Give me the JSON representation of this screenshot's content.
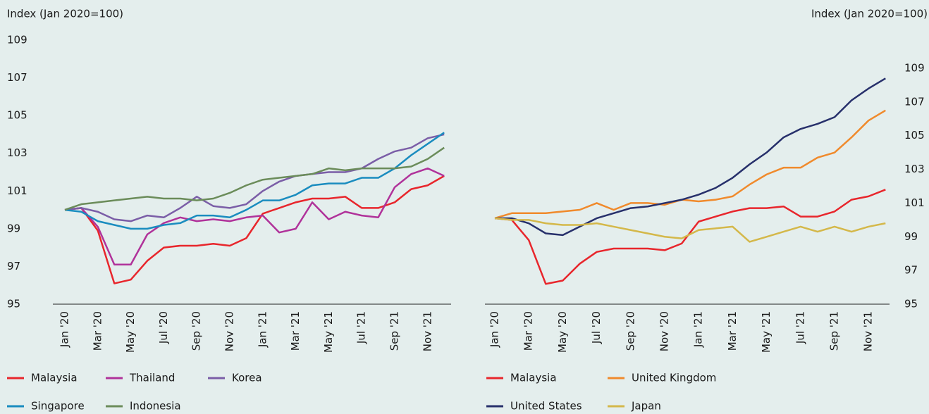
{
  "chart_data": [
    {
      "type": "line",
      "y_label": "Index (Jan 2020=100)",
      "categories": [
        "Jan '20",
        null,
        "Mar '20",
        null,
        "May '20",
        null,
        "Jul '20",
        null,
        "Sep '20",
        null,
        "Nov '20",
        null,
        "Jan '21",
        null,
        "Mar '21",
        null,
        "May '21",
        null,
        "Jul '21",
        null,
        "Sep '21",
        null,
        "Nov '21",
        null
      ],
      "ylim": [
        95,
        109
      ],
      "yticks": [
        95,
        97,
        99,
        101,
        103,
        105,
        107,
        109
      ],
      "series": [
        {
          "name": "Malaysia",
          "color": "#e8262c",
          "values": [
            100.0,
            100.1,
            98.9,
            96.1,
            96.3,
            97.3,
            98.0,
            98.1,
            98.1,
            98.2,
            98.1,
            98.5,
            99.8,
            100.1,
            100.4,
            100.6,
            100.6,
            100.7,
            100.1,
            100.1,
            100.4,
            101.1,
            101.3,
            101.8
          ]
        },
        {
          "name": "Thailand",
          "color": "#b0329a",
          "values": [
            100.0,
            100.1,
            99.1,
            97.1,
            97.1,
            98.7,
            99.3,
            99.6,
            99.4,
            99.5,
            99.4,
            99.6,
            99.7,
            98.8,
            99.0,
            100.4,
            99.5,
            99.9,
            99.7,
            99.6,
            101.2,
            101.9,
            102.2,
            101.8
          ]
        },
        {
          "name": "Korea",
          "color": "#7b5ea7",
          "values": [
            100.0,
            100.1,
            99.9,
            99.5,
            99.4,
            99.7,
            99.6,
            100.1,
            100.7,
            100.2,
            100.1,
            100.3,
            101.0,
            101.5,
            101.8,
            101.9,
            102.0,
            102.0,
            102.2,
            102.7,
            103.1,
            103.3,
            103.8,
            104.0
          ]
        },
        {
          "name": "Singapore",
          "color": "#1a8cbf",
          "values": [
            100.0,
            99.9,
            99.4,
            99.2,
            99.0,
            99.0,
            99.2,
            99.3,
            99.7,
            99.7,
            99.6,
            100.0,
            100.5,
            100.5,
            100.8,
            101.3,
            101.4,
            101.4,
            101.7,
            101.7,
            102.2,
            102.9,
            103.5,
            104.1
          ]
        },
        {
          "name": "Indonesia",
          "color": "#6b8c5a",
          "values": [
            100.0,
            100.3,
            100.4,
            100.5,
            100.6,
            100.7,
            100.6,
            100.6,
            100.5,
            100.6,
            100.9,
            101.3,
            101.6,
            101.7,
            101.8,
            101.9,
            102.2,
            102.1,
            102.2,
            102.2,
            102.2,
            102.3,
            102.7,
            103.3
          ]
        }
      ]
    },
    {
      "type": "line",
      "y_label": "Index (Jan 2020=100)",
      "categories": [
        "Jan '20",
        null,
        "Mar '20",
        null,
        "May '20",
        null,
        "Jul '20",
        null,
        "Sep '20",
        null,
        "Nov '20",
        null,
        "Jan '21",
        null,
        "Mar '21",
        null,
        "May '21",
        null,
        "Jul '21",
        null,
        "Sep '21",
        null,
        "Nov '21",
        null
      ],
      "ylim": [
        95,
        109
      ],
      "yticks": [
        95,
        97,
        99,
        101,
        103,
        105,
        107,
        109
      ],
      "series": [
        {
          "name": "Malaysia",
          "color": "#e8262c",
          "values": [
            100.1,
            100.0,
            98.8,
            96.2,
            96.4,
            97.4,
            98.1,
            98.3,
            98.3,
            98.3,
            98.2,
            98.6,
            99.9,
            100.2,
            100.5,
            100.7,
            100.7,
            100.8,
            100.2,
            100.2,
            100.5,
            101.2,
            101.4,
            101.8
          ]
        },
        {
          "name": "United Kingdom",
          "color": "#f08a2c",
          "values": [
            100.1,
            100.4,
            100.4,
            100.4,
            100.5,
            100.6,
            101.0,
            100.6,
            101.0,
            101.0,
            100.9,
            101.2,
            101.1,
            101.2,
            101.4,
            102.1,
            102.7,
            103.1,
            103.1,
            103.7,
            104.0,
            104.9,
            105.9,
            106.5
          ]
        },
        {
          "name": "United States",
          "color": "#27306b",
          "values": [
            100.1,
            100.1,
            99.8,
            99.2,
            99.1,
            99.6,
            100.1,
            100.4,
            100.7,
            100.8,
            101.0,
            101.2,
            101.5,
            101.9,
            102.5,
            103.3,
            104.0,
            104.9,
            105.4,
            105.7,
            106.1,
            107.1,
            107.8,
            108.4
          ]
        },
        {
          "name": "Japan",
          "color": "#d4b84a",
          "values": [
            100.1,
            100.0,
            100.0,
            99.8,
            99.7,
            99.7,
            99.8,
            99.6,
            99.4,
            99.2,
            99.0,
            98.9,
            99.4,
            99.5,
            99.6,
            98.7,
            99.0,
            99.3,
            99.6,
            99.3,
            99.6,
            99.3,
            99.6,
            99.8
          ]
        }
      ]
    }
  ]
}
